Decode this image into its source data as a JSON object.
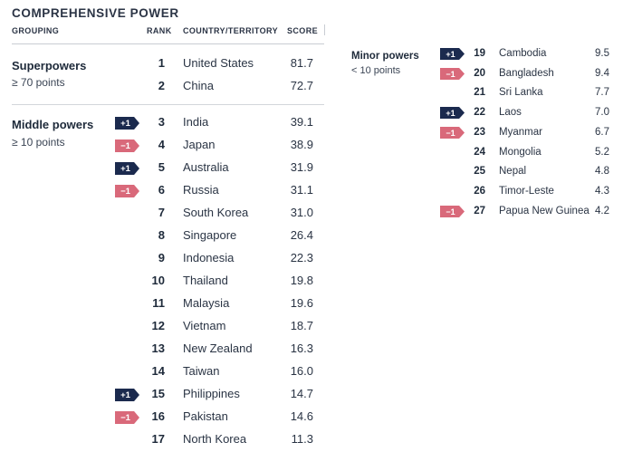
{
  "title": "COMPREHENSIVE POWER",
  "headers": {
    "grouping": "GROUPING",
    "rank": "RANK",
    "country": "COUNTRY/TERRITORY",
    "score": "SCORE"
  },
  "groups": {
    "superpowers": {
      "name": "Superpowers",
      "criteria": "≥ 70 points"
    },
    "middle": {
      "name": "Middle powers",
      "criteria": "≥ 10 points"
    },
    "minor": {
      "name": "Minor powers",
      "criteria": "< 10 points"
    }
  },
  "colors": {
    "up": "#1b2a4e",
    "down": "#d9697a"
  },
  "chart_data": {
    "type": "table",
    "columns": [
      "Rank",
      "Country/Territory",
      "Score",
      "Change"
    ],
    "rows": [
      {
        "rank": "1",
        "country": "United States",
        "score": "81.7",
        "change": ""
      },
      {
        "rank": "2",
        "country": "China",
        "score": "72.7",
        "change": ""
      },
      {
        "rank": "3",
        "country": "India",
        "score": "39.1",
        "change": "+1"
      },
      {
        "rank": "4",
        "country": "Japan",
        "score": "38.9",
        "change": "−1"
      },
      {
        "rank": "5",
        "country": "Australia",
        "score": "31.9",
        "change": "+1"
      },
      {
        "rank": "6",
        "country": "Russia",
        "score": "31.1",
        "change": "−1"
      },
      {
        "rank": "7",
        "country": "South Korea",
        "score": "31.0",
        "change": ""
      },
      {
        "rank": "8",
        "country": "Singapore",
        "score": "26.4",
        "change": ""
      },
      {
        "rank": "9",
        "country": "Indonesia",
        "score": "22.3",
        "change": ""
      },
      {
        "rank": "10",
        "country": "Thailand",
        "score": "19.8",
        "change": ""
      },
      {
        "rank": "11",
        "country": "Malaysia",
        "score": "19.6",
        "change": ""
      },
      {
        "rank": "12",
        "country": "Vietnam",
        "score": "18.7",
        "change": ""
      },
      {
        "rank": "13",
        "country": "New Zealand",
        "score": "16.3",
        "change": ""
      },
      {
        "rank": "14",
        "country": "Taiwan",
        "score": "16.0",
        "change": ""
      },
      {
        "rank": "15",
        "country": "Philippines",
        "score": "14.7",
        "change": "+1"
      },
      {
        "rank": "16",
        "country": "Pakistan",
        "score": "14.6",
        "change": "−1"
      },
      {
        "rank": "17",
        "country": "North Korea",
        "score": "11.3",
        "change": ""
      },
      {
        "rank": "19",
        "country": "Cambodia",
        "score": "9.5",
        "change": "+1"
      },
      {
        "rank": "20",
        "country": "Bangladesh",
        "score": "9.4",
        "change": "−1"
      },
      {
        "rank": "21",
        "country": "Sri Lanka",
        "score": "7.7",
        "change": ""
      },
      {
        "rank": "22",
        "country": "Laos",
        "score": "7.0",
        "change": "+1"
      },
      {
        "rank": "23",
        "country": "Myanmar",
        "score": "6.7",
        "change": "−1"
      },
      {
        "rank": "24",
        "country": "Mongolia",
        "score": "5.2",
        "change": ""
      },
      {
        "rank": "25",
        "country": "Nepal",
        "score": "4.8",
        "change": ""
      },
      {
        "rank": "26",
        "country": "Timor-Leste",
        "score": "4.3",
        "change": ""
      },
      {
        "rank": "27",
        "country": "Papua New Guinea",
        "score": "4.2",
        "change": "−1"
      }
    ]
  }
}
